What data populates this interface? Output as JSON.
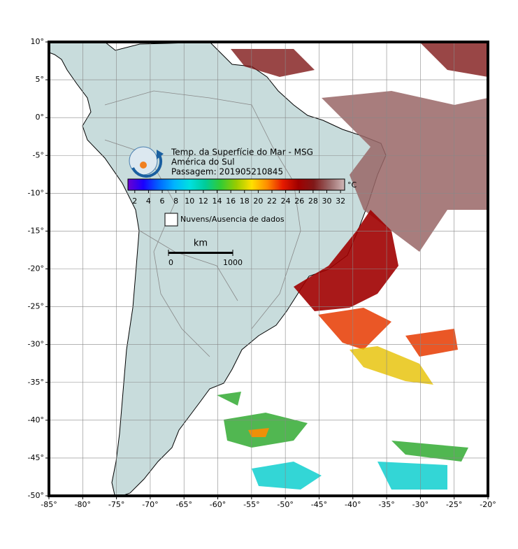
{
  "map": {
    "lon_range": [
      -85,
      -20
    ],
    "lat_range": [
      -50,
      10
    ],
    "lon_ticks": [
      {
        "value": -85,
        "label": "-85°"
      },
      {
        "value": -80,
        "label": "-80°"
      },
      {
        "value": -75,
        "label": "-75°"
      },
      {
        "value": -70,
        "label": "-70°"
      },
      {
        "value": -65,
        "label": "-65°"
      },
      {
        "value": -60,
        "label": "-60°"
      },
      {
        "value": -55,
        "label": "-55°"
      },
      {
        "value": -50,
        "label": "-50°"
      },
      {
        "value": -45,
        "label": "-45°"
      },
      {
        "value": -40,
        "label": "-40°"
      },
      {
        "value": -35,
        "label": "-35°"
      },
      {
        "value": -30,
        "label": "-30°"
      },
      {
        "value": -25,
        "label": "-25°"
      },
      {
        "value": -20,
        "label": "-20°"
      }
    ],
    "lat_ticks": [
      {
        "value": 10,
        "label": "10°"
      },
      {
        "value": 5,
        "label": "5°"
      },
      {
        "value": 0,
        "label": "0°"
      },
      {
        "value": -5,
        "label": "-5°"
      },
      {
        "value": -10,
        "label": "-10°"
      },
      {
        "value": -15,
        "label": "-15°"
      },
      {
        "value": -20,
        "label": "-20°"
      },
      {
        "value": -25,
        "label": "-25°"
      },
      {
        "value": -30,
        "label": "-30°"
      },
      {
        "value": -35,
        "label": "-35°"
      },
      {
        "value": -40,
        "label": "-40°"
      },
      {
        "value": -45,
        "label": "-45°"
      },
      {
        "value": -50,
        "label": "-50°"
      }
    ]
  },
  "legend": {
    "title_lines": [
      "Temp. da Superfície do Mar - MSG",
      "América do Sul",
      "Passagem: 201905210845"
    ],
    "colorbar": {
      "range": [
        1,
        32.6
      ],
      "ticks": [
        2,
        4,
        6,
        8,
        10,
        12,
        14,
        16,
        18,
        20,
        22,
        24,
        26,
        28,
        30,
        32
      ],
      "unit": "°C",
      "colors": [
        "#6a00d0",
        "#1a00ff",
        "#0066ff",
        "#00b4ff",
        "#00e0e0",
        "#00cc99",
        "#33cc33",
        "#99cc00",
        "#ffe000",
        "#ff8c00",
        "#e61a00",
        "#a00000",
        "#801818",
        "#996666",
        "#d0b8b8"
      ]
    },
    "no_data_label": "Nuvens/Ausencia de dados"
  },
  "scale_bar": {
    "unit": "km",
    "range": [
      0,
      1000
    ],
    "ticks": [
      0,
      1000
    ]
  }
}
